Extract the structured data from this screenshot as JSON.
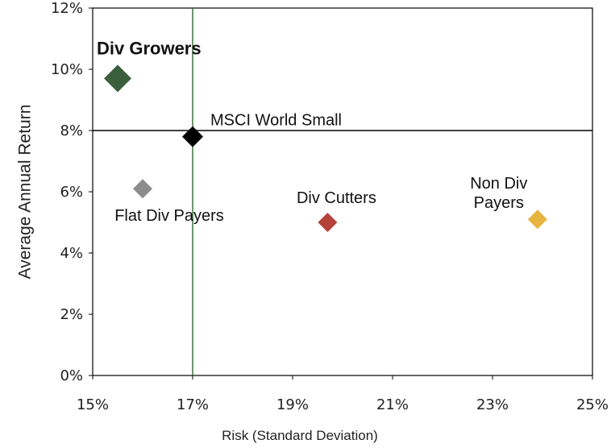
{
  "chart_data": {
    "type": "scatter",
    "xlabel": "Risk (Standard Deviation)",
    "ylabel": "Average Annual Return",
    "xlim": [
      0.15,
      0.25
    ],
    "ylim": [
      0.0,
      0.12
    ],
    "x_ticks": [
      "15%",
      "17%",
      "19%",
      "21%",
      "23%",
      "25%"
    ],
    "y_ticks": [
      "0%",
      "2%",
      "4%",
      "6%",
      "8%",
      "10%",
      "12%"
    ],
    "grid": false,
    "reference_lines": [
      {
        "orientation": "horizontal",
        "value": 0.08,
        "color": "#000000"
      },
      {
        "orientation": "vertical",
        "value": 0.17,
        "color": "#2e6b2e"
      }
    ],
    "points": [
      {
        "name": "Div Growers",
        "x": 0.155,
        "y": 0.097,
        "color": "#3b5e3b",
        "marker": "diamond",
        "label_bold": true,
        "label_lines": [
          "Div Growers"
        ]
      },
      {
        "name": "MSCI World Small",
        "x": 0.17,
        "y": 0.078,
        "color": "#000000",
        "marker": "diamond",
        "label_bold": false,
        "label_lines": [
          "MSCI World Small"
        ]
      },
      {
        "name": "Flat Div Payers",
        "x": 0.16,
        "y": 0.061,
        "color": "#8c8c8c",
        "marker": "diamond",
        "label_bold": false,
        "label_lines": [
          "Flat Div Payers"
        ]
      },
      {
        "name": "Div Cutters",
        "x": 0.197,
        "y": 0.05,
        "color": "#b5413b",
        "marker": "diamond",
        "label_bold": false,
        "label_lines": [
          "Div Cutters"
        ]
      },
      {
        "name": "Non Div Payers",
        "x": 0.239,
        "y": 0.051,
        "color": "#e8b440",
        "marker": "diamond",
        "label_bold": false,
        "label_lines": [
          "Non Div",
          "Payers"
        ]
      }
    ]
  }
}
